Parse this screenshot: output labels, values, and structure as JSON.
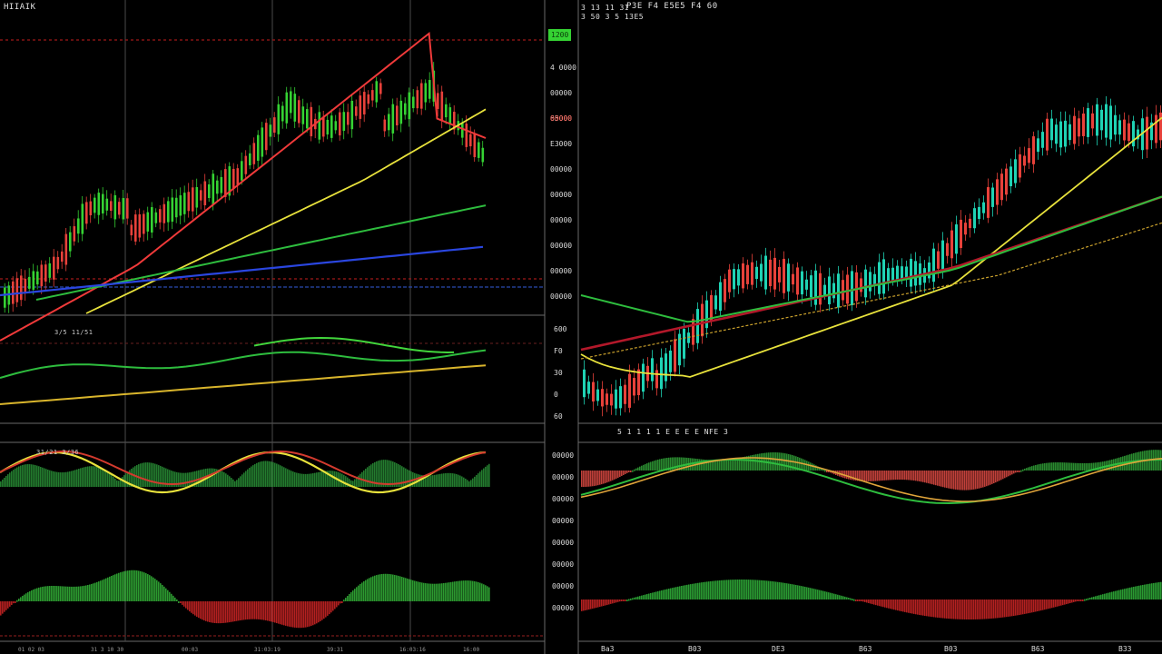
{
  "left_panel": {
    "title": "HIIAIK",
    "volume_label": "3/5 11/51",
    "osc_label": "31/21 3/36"
  },
  "right_panel": {
    "title": "P3E F4 E5E5 F4 60",
    "sub_title": "3 50 3 5 13E5",
    "header_small": "3 13 11 3I",
    "mid_label": "5 1 1 1 1 E E E E  NFE 3"
  },
  "price_axis_left": {
    "badge": "1200",
    "top_labels": [
      "4 0000",
      "00000",
      "65000",
      "E3000",
      "00000",
      "00000",
      "00000",
      "00000",
      "00000",
      "00000"
    ],
    "red_label": "00000",
    "mid_labels": [
      "600",
      "F0",
      "30",
      "0",
      "60"
    ],
    "osc_labels": [
      "00000",
      "00000",
      "00000",
      "00000",
      "00000",
      "00000",
      "00000",
      "00000"
    ]
  },
  "time_axis_right": [
    "Ba3",
    "B03",
    "DE3",
    "B63",
    "B03",
    "B63",
    "B33"
  ],
  "time_axis_left": [
    "01 02 03",
    "31 3 10 30",
    "00:03",
    "31:03:19",
    "39:31",
    "16:03:16",
    "16:00"
  ],
  "colors": {
    "up": "#35d233",
    "up_cyan": "#1fd3b4",
    "down": "#e8413a",
    "ma_red": "#f03a3a",
    "ma_yellow": "#e8e23c",
    "ma_green": "#2ebd3e",
    "ma_blue": "#2a46e0",
    "ma_darkred": "#b3182a",
    "grid": "#3b3b3b",
    "red_dashed": "#a01818"
  }
}
